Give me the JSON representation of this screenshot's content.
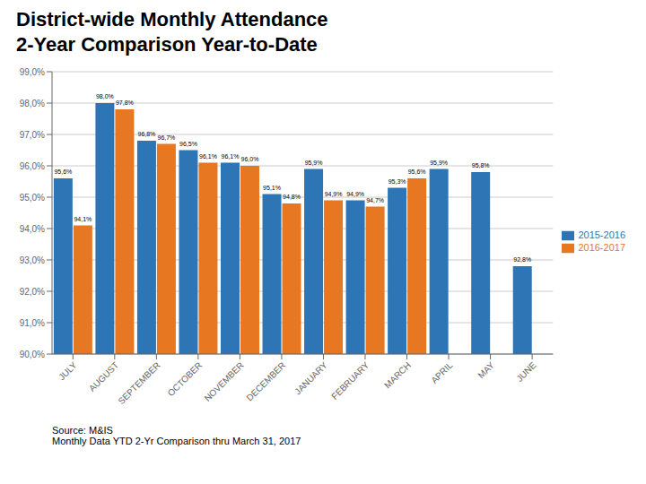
{
  "chart_data": {
    "type": "bar",
    "title": "District-wide Monthly Attendance",
    "subtitle": "2-Year Comparison Year-to-Date",
    "categories": [
      "JULY",
      "AUGUST",
      "SEPTEMBER",
      "OCTOBER",
      "NOVEMBER",
      "DECEMBER",
      "JANUARY",
      "FEBRUARY",
      "MARCH",
      "APRIL",
      "MAY",
      "JUNE"
    ],
    "series": [
      {
        "name": "2015-2016",
        "color": "#2E75B6",
        "values": [
          95.6,
          98.0,
          96.8,
          96.5,
          96.1,
          95.1,
          95.9,
          94.9,
          95.3,
          95.9,
          95.8,
          92.8
        ],
        "value_labels": [
          "95,6%",
          "98,0%",
          "96,8%",
          "96,5%",
          "96,1%",
          "95,1%",
          "95,9%",
          "94,9%",
          "95,3%",
          "95,9%",
          "95,8%",
          "92,8%"
        ]
      },
      {
        "name": "2016-2017",
        "color": "#E87722",
        "values": [
          94.1,
          97.8,
          96.7,
          96.1,
          96.0,
          94.8,
          94.9,
          94.7,
          95.6,
          null,
          null,
          null
        ],
        "value_labels": [
          "94,1%",
          "97,8%",
          "96,7%",
          "96,1%",
          "96,0%",
          "94,8%",
          "94,9%",
          "94,7%",
          "95,6%",
          null,
          null,
          null
        ]
      }
    ],
    "ylim": [
      90.0,
      99.0
    ],
    "yticks": [
      {
        "value": 90.0,
        "label": "90,0%"
      },
      {
        "value": 91.0,
        "label": "91,0%"
      },
      {
        "value": 92.0,
        "label": "92,0%"
      },
      {
        "value": 93.0,
        "label": "93,0%"
      },
      {
        "value": 94.0,
        "label": "94,0%"
      },
      {
        "value": 95.0,
        "label": "95,0%"
      },
      {
        "value": 96.0,
        "label": "96,0%"
      },
      {
        "value": 97.0,
        "label": "97,0%"
      },
      {
        "value": 98.0,
        "label": "98,0%"
      },
      {
        "value": 99.0,
        "label": "99,0%"
      }
    ],
    "grid": true,
    "legend": "right",
    "data_labels": true,
    "annotations": [
      "Source: M&IS",
      "Monthly Data YTD 2-Yr Comparison thru March 31, 2017"
    ]
  }
}
